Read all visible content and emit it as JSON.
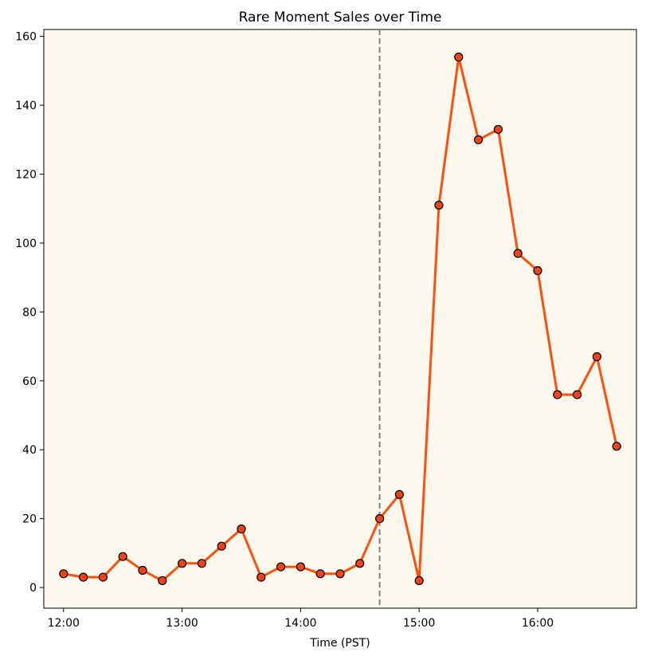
{
  "chart_data": {
    "type": "line",
    "title": "Rare Moment Sales over Time",
    "xlabel": "Time (PST)",
    "ylabel": "",
    "x": [
      "12:00",
      "12:10",
      "12:20",
      "12:30",
      "12:40",
      "12:50",
      "13:00",
      "13:10",
      "13:20",
      "13:30",
      "13:40",
      "13:50",
      "14:00",
      "14:10",
      "14:20",
      "14:30",
      "14:40",
      "14:50",
      "15:00",
      "15:10",
      "15:20",
      "15:30",
      "15:40",
      "15:50",
      "16:00",
      "16:10",
      "16:20",
      "16:30",
      "16:40"
    ],
    "series": [
      {
        "values": [
          4,
          3,
          3,
          9,
          5,
          2,
          7,
          7,
          12,
          17,
          3,
          6,
          6,
          4,
          4,
          7,
          20,
          27,
          2,
          111,
          154,
          130,
          133,
          97,
          92,
          56,
          56,
          67,
          41
        ],
        "color": "#ff4f0a",
        "marker_color": "#f0431a",
        "marker_edge": "#000000"
      }
    ],
    "xticks": [
      "12:00",
      "13:00",
      "14:00",
      "15:00",
      "16:00"
    ],
    "yticks": [
      0,
      20,
      40,
      60,
      80,
      100,
      120,
      140,
      160
    ],
    "xlim": [
      "11:50",
      "16:50"
    ],
    "ylim": [
      -6,
      162
    ],
    "vline": {
      "x": "14:40",
      "style": "dashed",
      "color": "#808080"
    },
    "background": "#fef9ee",
    "grid": false,
    "legend": "none"
  }
}
